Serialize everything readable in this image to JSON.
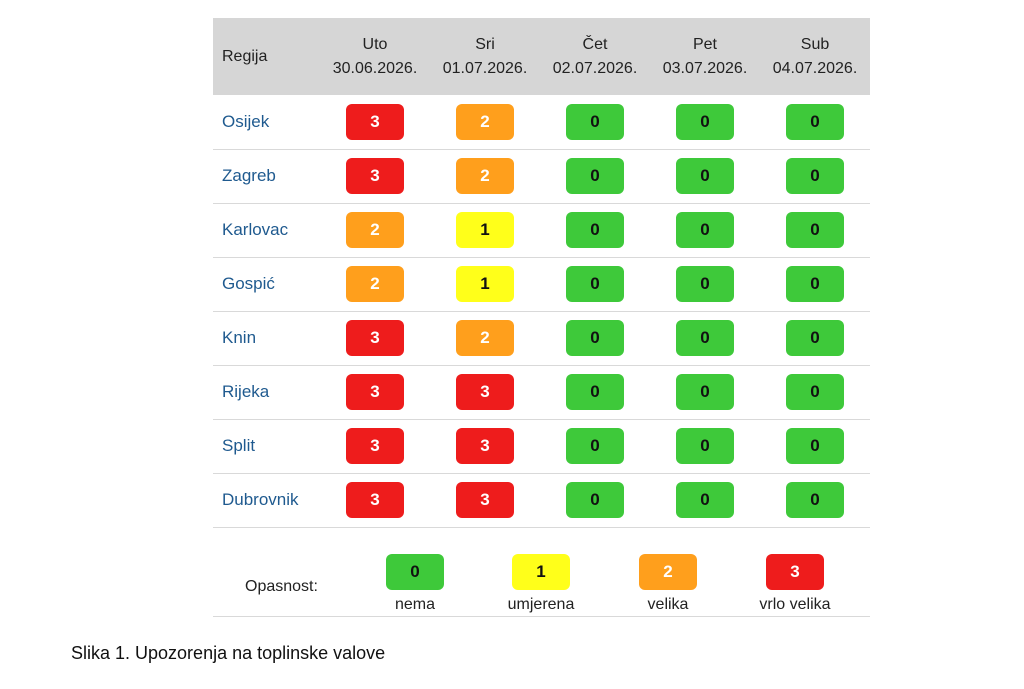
{
  "table": {
    "region_header": "Regija",
    "days": [
      {
        "day": "Uto",
        "date": "30.06.2026."
      },
      {
        "day": "Sri",
        "date": "01.07.2026."
      },
      {
        "day": "Čet",
        "date": "02.07.2026."
      },
      {
        "day": "Pet",
        "date": "03.07.2026."
      },
      {
        "day": "Sub",
        "date": "04.07.2026."
      }
    ],
    "rows": [
      {
        "region": "Osijek",
        "levels": [
          3,
          2,
          0,
          0,
          0
        ]
      },
      {
        "region": "Zagreb",
        "levels": [
          3,
          2,
          0,
          0,
          0
        ]
      },
      {
        "region": "Karlovac",
        "levels": [
          2,
          1,
          0,
          0,
          0
        ]
      },
      {
        "region": "Gospić",
        "levels": [
          2,
          1,
          0,
          0,
          0
        ]
      },
      {
        "region": "Knin",
        "levels": [
          3,
          2,
          0,
          0,
          0
        ]
      },
      {
        "region": "Rijeka",
        "levels": [
          3,
          3,
          0,
          0,
          0
        ]
      },
      {
        "region": "Split",
        "levels": [
          3,
          3,
          0,
          0,
          0
        ]
      },
      {
        "region": "Dubrovnik",
        "levels": [
          3,
          3,
          0,
          0,
          0
        ]
      }
    ]
  },
  "legend": {
    "title": "Opasnost:",
    "items": [
      {
        "level": "0",
        "label": "nema"
      },
      {
        "level": "1",
        "label": "umjerena"
      },
      {
        "level": "2",
        "label": "velika"
      },
      {
        "level": "3",
        "label": "vrlo velika"
      }
    ]
  },
  "level_colors": {
    "0": "#3ec93a",
    "1": "#ffff1a",
    "2": "#ff9f1c",
    "3": "#ee1c1c"
  },
  "caption": "Slika 1. Upozorenja na toplinske valove",
  "chart_data": {
    "type": "table",
    "columns": [
      "Uto 30.06.2026.",
      "Sri 01.07.2026.",
      "Čet 02.07.2026.",
      "Pet 03.07.2026.",
      "Sub 04.07.2026."
    ],
    "rows": [
      "Osijek",
      "Zagreb",
      "Karlovac",
      "Gospić",
      "Knin",
      "Rijeka",
      "Split",
      "Dubrovnik"
    ],
    "values": [
      [
        3,
        2,
        0,
        0,
        0
      ],
      [
        3,
        2,
        0,
        0,
        0
      ],
      [
        2,
        1,
        0,
        0,
        0
      ],
      [
        2,
        1,
        0,
        0,
        0
      ],
      [
        3,
        2,
        0,
        0,
        0
      ],
      [
        3,
        3,
        0,
        0,
        0
      ],
      [
        3,
        3,
        0,
        0,
        0
      ],
      [
        3,
        3,
        0,
        0,
        0
      ]
    ],
    "legend": [
      {
        "value": 0,
        "label": "nema",
        "color": "#3ec93a"
      },
      {
        "value": 1,
        "label": "umjerena",
        "color": "#ffff1a"
      },
      {
        "value": 2,
        "label": "velika",
        "color": "#ff9f1c"
      },
      {
        "value": 3,
        "label": "vrlo velika",
        "color": "#ee1c1c"
      }
    ]
  }
}
